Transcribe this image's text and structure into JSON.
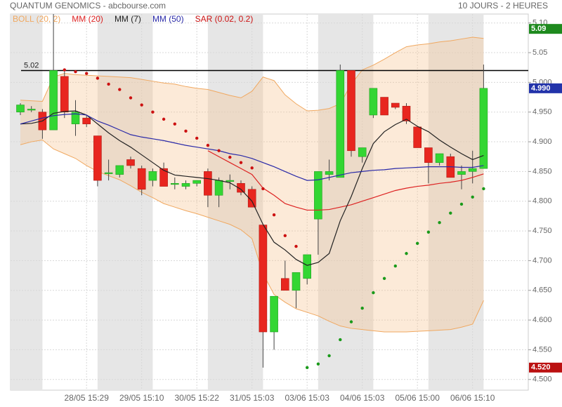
{
  "chart_data": {
    "type": "candlestick",
    "title": "QUANTUM GENOMICS - abcbourse.com",
    "subtitle": "10 JOURS - 2 HEURES",
    "categories": [
      null,
      null,
      null,
      null,
      null,
      null,
      "28/05 15:29",
      null,
      null,
      null,
      null,
      "29/05 15:10",
      null,
      null,
      null,
      null,
      "30/05 15:22",
      null,
      null,
      null,
      null,
      "31/05 15:03",
      null,
      null,
      null,
      null,
      "03/06 15:03",
      null,
      null,
      null,
      null,
      "04/06 15:03",
      null,
      null,
      null,
      null,
      "05/06 15:00",
      null,
      null,
      null,
      null,
      "06/06 15:10",
      null
    ],
    "ohlc": {
      "up_color": "#33d633",
      "down_color": "#e8261f",
      "open": [
        4.95,
        4.955,
        4.95,
        4.92,
        5.01,
        4.93,
        4.94,
        4.91,
        4.848,
        4.845,
        4.87,
        4.855,
        4.835,
        4.855,
        4.83,
        4.825,
        4.83,
        4.85,
        4.81,
        4.835,
        4.83,
        4.82,
        4.76,
        4.58,
        4.67,
        4.65,
        4.67,
        4.77,
        4.845,
        4.84,
        5.02,
        4.875,
        4.945,
        4.975,
        4.965,
        4.96,
        4.925,
        4.89,
        4.865,
        4.875,
        4.845,
        4.85,
        4.855
      ],
      "high": [
        4.965,
        4.96,
        4.955,
        5.115,
        5.02,
        4.97,
        4.945,
        4.91,
        4.87,
        4.86,
        4.875,
        4.86,
        4.855,
        4.865,
        4.84,
        4.835,
        4.835,
        4.855,
        4.84,
        4.845,
        4.835,
        4.825,
        4.76,
        4.64,
        4.7,
        4.68,
        4.71,
        4.85,
        4.87,
        5.03,
        5.02,
        4.89,
        4.99,
        4.975,
        4.965,
        4.965,
        4.925,
        4.89,
        4.88,
        4.88,
        4.86,
        4.885,
        5.03
      ],
      "low": [
        4.945,
        4.95,
        4.905,
        4.92,
        4.94,
        4.91,
        4.925,
        4.825,
        4.835,
        4.84,
        4.855,
        4.81,
        4.825,
        4.825,
        4.82,
        4.82,
        4.825,
        4.79,
        4.79,
        4.82,
        4.81,
        4.79,
        4.52,
        4.55,
        4.65,
        4.62,
        4.66,
        4.71,
        4.835,
        4.84,
        4.875,
        4.865,
        4.94,
        4.945,
        4.955,
        4.93,
        4.89,
        4.83,
        4.86,
        4.84,
        4.82,
        4.83,
        4.855
      ],
      "close": [
        4.962,
        4.955,
        4.92,
        5.02,
        4.95,
        4.95,
        4.93,
        4.835,
        4.848,
        4.86,
        4.86,
        4.82,
        4.85,
        4.825,
        4.83,
        4.83,
        4.835,
        4.81,
        4.835,
        4.835,
        4.815,
        4.79,
        4.58,
        4.64,
        4.65,
        4.68,
        4.71,
        4.85,
        4.85,
        5.02,
        4.885,
        4.89,
        4.99,
        4.945,
        4.958,
        4.935,
        4.89,
        4.865,
        4.88,
        4.84,
        4.85,
        4.855,
        4.99
      ]
    },
    "bollinger": {
      "name": "BOLL (20, 2)",
      "color": "#f0a860",
      "upper": [
        4.97,
        4.969,
        4.968,
        5.009,
        5.015,
        5.013,
        5.012,
        5.011,
        5.01,
        5.009,
        5.008,
        5.005,
        5.002,
        4.999,
        4.997,
        4.993,
        4.99,
        4.988,
        4.983,
        4.978,
        4.974,
        4.985,
        5.009,
        5.003,
        4.979,
        4.964,
        4.952,
        4.953,
        4.956,
        4.964,
        4.997,
        5.021,
        5.029,
        5.039,
        5.05,
        5.06,
        5.063,
        5.065,
        5.068,
        5.07,
        5.073,
        5.076,
        5.074
      ],
      "lower": [
        4.895,
        4.9,
        4.903,
        4.888,
        4.88,
        4.872,
        4.86,
        4.85,
        4.843,
        4.836,
        4.826,
        4.815,
        4.806,
        4.796,
        4.79,
        4.784,
        4.779,
        4.773,
        4.767,
        4.761,
        4.752,
        4.737,
        4.678,
        4.643,
        4.63,
        4.619,
        4.613,
        4.607,
        4.598,
        4.59,
        4.586,
        4.584,
        4.582,
        4.58,
        4.58,
        4.58,
        4.581,
        4.582,
        4.583,
        4.584,
        4.588,
        4.593,
        4.633
      ]
    },
    "series": [
      {
        "name": "MM (20)",
        "color": "#dd2222",
        "values": [
          null,
          null,
          null,
          null,
          null,
          null,
          null,
          null,
          null,
          null,
          null,
          null,
          null,
          null,
          null,
          null,
          null,
          4.885,
          4.875,
          4.865,
          4.855,
          4.845,
          4.822,
          4.81,
          4.796,
          4.79,
          4.785,
          4.785,
          4.786,
          4.79,
          4.794,
          4.8,
          4.806,
          4.812,
          4.818,
          4.822,
          4.825,
          4.827,
          4.83,
          4.832,
          4.835,
          4.84,
          4.846
        ]
      },
      {
        "name": "MM (7)",
        "color": "#222222",
        "values": [
          4.93,
          4.931,
          4.935,
          4.948,
          4.951,
          4.952,
          4.945,
          4.93,
          4.915,
          4.902,
          4.891,
          4.878,
          4.865,
          4.852,
          4.844,
          4.842,
          4.84,
          4.838,
          4.835,
          4.831,
          4.82,
          4.8,
          4.761,
          4.731,
          4.718,
          4.702,
          4.692,
          4.697,
          4.712,
          4.767,
          4.808,
          4.855,
          4.897,
          4.917,
          4.929,
          4.938,
          4.926,
          4.917,
          4.903,
          4.891,
          4.88,
          4.87,
          4.877
        ]
      },
      {
        "name": "MM (50)",
        "color": "#2a2aa8",
        "values": [
          4.93,
          4.935,
          4.94,
          4.944,
          4.946,
          4.947,
          4.945,
          4.935,
          4.928,
          4.92,
          4.912,
          4.908,
          4.905,
          4.902,
          4.898,
          4.894,
          4.891,
          4.888,
          4.885,
          4.88,
          4.877,
          4.872,
          4.865,
          4.858,
          4.85,
          4.842,
          4.835,
          4.836,
          4.84,
          4.844,
          4.848,
          4.85,
          4.852,
          4.853,
          4.855,
          4.856,
          4.857,
          4.858,
          4.858,
          4.858,
          4.857,
          4.857,
          4.86
        ]
      }
    ],
    "sar": {
      "name": "SAR (0.02, 0.2)",
      "color": "#cc1111",
      "up_color": "#1a9a1a",
      "values": [
        null,
        null,
        null,
        null,
        5.021,
        5.018,
        5.015,
        5.007,
        4.997,
        4.988,
        4.974,
        4.962,
        4.95,
        4.938,
        4.93,
        4.918,
        4.906,
        4.894,
        4.885,
        4.874,
        4.865,
        4.856,
        4.821,
        4.777,
        4.742,
        4.724,
        4.52,
        4.526,
        4.54,
        4.567,
        4.597,
        4.62,
        4.646,
        4.67,
        4.691,
        4.712,
        4.729,
        4.748,
        4.764,
        4.78,
        4.795,
        4.807,
        4.821
      ]
    },
    "hline": 5.02,
    "price_tags": [
      {
        "value": 5.09,
        "label": "5.09",
        "color": "#1e8a1e"
      },
      {
        "value": 4.99,
        "label": "4.990",
        "color": "#2233aa"
      },
      {
        "value": 4.52,
        "label": "4.520",
        "color": "#bb1111"
      }
    ],
    "ylim": [
      4.482,
      5.115
    ],
    "yticks": [
      {
        "value": 5.1,
        "label": "5.10"
      },
      {
        "value": 5.05,
        "label": "5.05"
      },
      {
        "value": 5,
        "label": "5.000"
      },
      {
        "value": 4.95,
        "label": "4.950"
      },
      {
        "value": 4.9,
        "label": "4.900"
      },
      {
        "value": 4.85,
        "label": "4.850"
      },
      {
        "value": 4.8,
        "label": "4.800"
      },
      {
        "value": 4.75,
        "label": "4.750"
      },
      {
        "value": 4.7,
        "label": "4.700"
      },
      {
        "value": 4.65,
        "label": "4.650"
      },
      {
        "value": 4.6,
        "label": "4.600"
      },
      {
        "value": 4.55,
        "label": "4.550"
      },
      {
        "value": 4.5,
        "label": "4.500"
      }
    ],
    "grid": true
  }
}
